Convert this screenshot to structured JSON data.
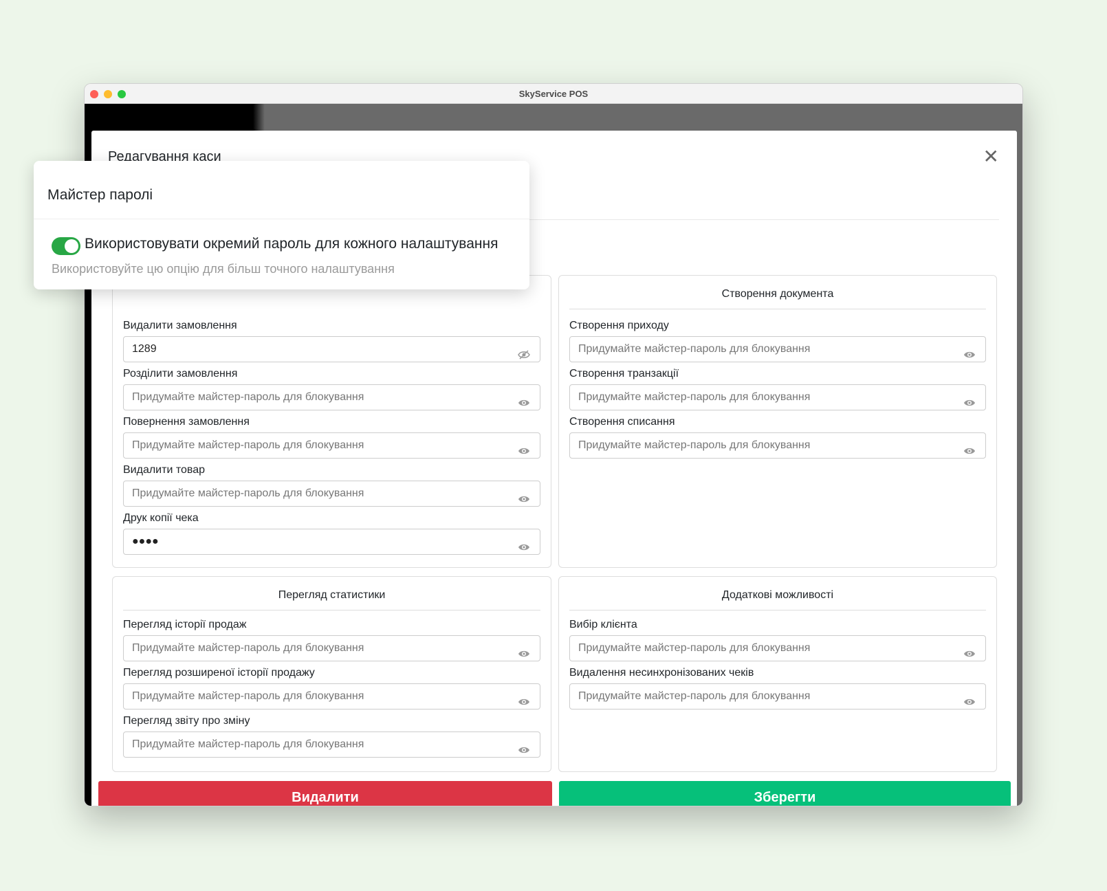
{
  "window": {
    "title": "SkyService POS"
  },
  "modal": {
    "title": "Редагування каси"
  },
  "popup": {
    "title": "Майстер паролі",
    "toggle_label": "Використовувати окремий пароль для кожного налаштування",
    "toggle_on": true,
    "hint": "Використовуйте цю опцію для більш точного налаштування"
  },
  "panels": [
    {
      "title": "",
      "fields": [
        {
          "label": "Видалити замовлення",
          "value": "1289",
          "placeholder": "",
          "icon": "eye-slash-icon"
        },
        {
          "label": "Розділити замовлення",
          "value": "",
          "placeholder": "Придумайте майстер-пароль для блокування",
          "icon": "eye-icon"
        },
        {
          "label": "Повернення замовлення",
          "value": "",
          "placeholder": "Придумайте майстер-пароль для блокування",
          "icon": "eye-icon"
        },
        {
          "label": "Видалити товар",
          "value": "",
          "placeholder": "Придумайте майстер-пароль для блокування",
          "icon": "eye-icon"
        },
        {
          "label": "Друк копії чека",
          "value": "●●●●",
          "placeholder": "",
          "icon": "eye-icon"
        }
      ]
    },
    {
      "title": "Створення документа",
      "fields": [
        {
          "label": "Створення приходу",
          "value": "",
          "placeholder": "Придумайте майстер-пароль для блокування",
          "icon": "eye-icon"
        },
        {
          "label": "Створення транзакції",
          "value": "",
          "placeholder": "Придумайте майстер-пароль для блокування",
          "icon": "eye-icon"
        },
        {
          "label": "Створення списання",
          "value": "",
          "placeholder": "Придумайте майстер-пароль для блокування",
          "icon": "eye-icon"
        }
      ]
    },
    {
      "title": "Перегляд статистики",
      "fields": [
        {
          "label": "Перегляд історії продаж",
          "value": "",
          "placeholder": "Придумайте майстер-пароль для блокування",
          "icon": "eye-icon"
        },
        {
          "label": "Перегляд розширеної історії продажу",
          "value": "",
          "placeholder": "Придумайте майстер-пароль для блокування",
          "icon": "eye-icon"
        },
        {
          "label": "Перегляд звіту про зміну",
          "value": "",
          "placeholder": "Придумайте майстер-пароль для блокування",
          "icon": "eye-icon"
        }
      ]
    },
    {
      "title": "Додаткові можливості",
      "fields": [
        {
          "label": "Вибір клієнта",
          "value": "",
          "placeholder": "Придумайте майстер-пароль для блокування",
          "icon": "eye-icon"
        },
        {
          "label": "Видалення несинхронізованих чеків",
          "value": "",
          "placeholder": "Придумайте майстер-пароль для блокування",
          "icon": "eye-icon"
        }
      ]
    }
  ],
  "buttons": {
    "delete": "Видалити",
    "save": "Зберегти"
  },
  "colors": {
    "delete": "#dc3545",
    "save": "#06c07a",
    "toggle": "#28a745"
  }
}
